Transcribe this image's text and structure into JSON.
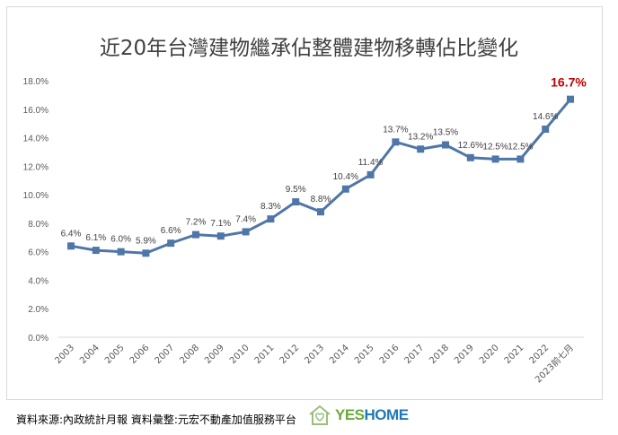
{
  "chart_data": {
    "type": "line",
    "title": "近20年台灣建物繼承佔整體建物移轉佔比變化",
    "categories": [
      "2003",
      "2004",
      "2005",
      "2006",
      "2007",
      "2008",
      "2009",
      "2010",
      "2011",
      "2012",
      "2013",
      "2014",
      "2015",
      "2016",
      "2017",
      "2018",
      "2019",
      "2020",
      "2021",
      "2022",
      "2023前七月"
    ],
    "values": [
      6.4,
      6.1,
      6.0,
      5.9,
      6.6,
      7.2,
      7.1,
      7.4,
      8.3,
      9.5,
      8.8,
      10.4,
      11.4,
      13.7,
      13.2,
      13.5,
      12.6,
      12.5,
      12.5,
      14.6,
      16.7
    ],
    "labels": [
      "6.4%",
      "6.1%",
      "6.0%",
      "5.9%",
      "6.6%",
      "7.2%",
      "7.1%",
      "7.4%",
      "8.3%",
      "9.5%",
      "8.8%",
      "10.4%",
      "11.4%",
      "13.7%",
      "13.2%",
      "13.5%",
      "12.6%",
      "12.5%",
      "12.5%",
      "14.6%",
      "16.7%"
    ],
    "yticks": [
      "0.0%",
      "2.0%",
      "4.0%",
      "6.0%",
      "8.0%",
      "10.0%",
      "12.0%",
      "14.0%",
      "16.0%",
      "18.0%"
    ],
    "ylim": [
      0,
      18
    ],
    "grid": false,
    "line_color": "#4f76a8",
    "highlight_color": "#c00000"
  },
  "footer": {
    "source": "資料來源:內政統計月報 資料彙整:元宏不動產加值服務平台"
  },
  "logo": {
    "text_a": "YES",
    "text_b": "HOME"
  }
}
